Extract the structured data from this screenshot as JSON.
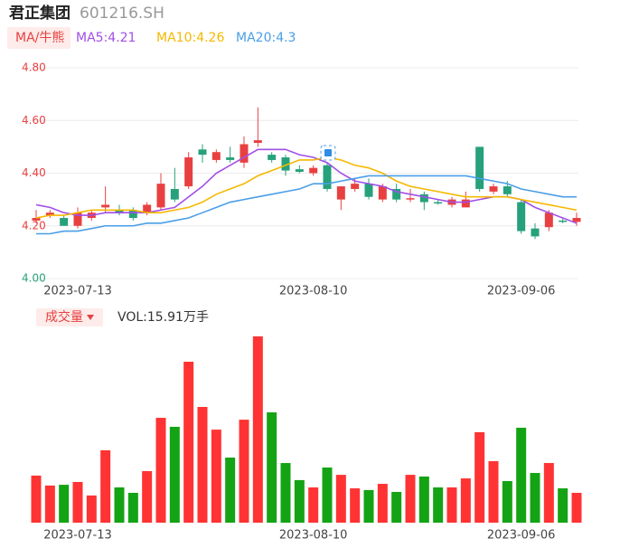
{
  "chart_data": [
    {
      "type": "candlestick",
      "title": "君正集团",
      "subtitle": "601216.SH",
      "indicator_button": "MA/牛熊",
      "categories": [
        null,
        null,
        null,
        "2023-07-13",
        null,
        null,
        null,
        null,
        null,
        null,
        null,
        null,
        null,
        null,
        null,
        null,
        null,
        null,
        null,
        null,
        "2023-08-10",
        null,
        null,
        null,
        null,
        null,
        null,
        null,
        null,
        null,
        null,
        null,
        null,
        null,
        null,
        "2023-09-06",
        null,
        null,
        null,
        null
      ],
      "open": [
        4.22,
        4.24,
        4.23,
        4.2,
        4.23,
        4.27,
        4.26,
        4.26,
        4.25,
        4.27,
        4.34,
        4.35,
        4.49,
        4.45,
        4.46,
        4.44,
        4.515,
        4.47,
        4.46,
        4.415,
        4.4,
        4.43,
        4.3,
        4.34,
        4.36,
        4.3,
        4.34,
        4.3,
        4.32,
        4.29,
        4.28,
        4.27,
        4.5,
        4.33,
        4.35,
        4.29,
        4.19,
        4.195,
        4.22,
        4.215
      ],
      "high": [
        4.26,
        4.26,
        4.24,
        4.27,
        4.26,
        4.35,
        4.28,
        4.27,
        4.29,
        4.4,
        4.42,
        4.48,
        4.51,
        4.49,
        4.5,
        4.54,
        4.65,
        4.48,
        4.47,
        4.43,
        4.43,
        4.44,
        4.35,
        4.38,
        4.38,
        4.36,
        4.36,
        4.34,
        4.33,
        4.3,
        4.31,
        4.33,
        4.5,
        4.36,
        4.37,
        4.3,
        4.21,
        4.26,
        4.23,
        4.25
      ],
      "low": [
        4.21,
        4.23,
        4.2,
        4.19,
        4.22,
        4.25,
        4.24,
        4.22,
        4.24,
        4.26,
        4.29,
        4.34,
        4.44,
        4.44,
        4.44,
        4.42,
        4.5,
        4.44,
        4.39,
        4.4,
        4.39,
        4.33,
        4.26,
        4.33,
        4.3,
        4.29,
        4.29,
        4.29,
        4.26,
        4.28,
        4.27,
        4.27,
        4.33,
        4.32,
        4.31,
        4.17,
        4.15,
        4.18,
        4.21,
        4.2
      ],
      "close": [
        4.23,
        4.25,
        4.2,
        4.25,
        4.25,
        4.28,
        4.25,
        4.23,
        4.28,
        4.36,
        4.3,
        4.46,
        4.47,
        4.48,
        4.45,
        4.51,
        4.525,
        4.45,
        4.41,
        4.405,
        4.42,
        4.34,
        4.35,
        4.36,
        4.31,
        4.35,
        4.3,
        4.305,
        4.29,
        4.285,
        4.3,
        4.3,
        4.34,
        4.35,
        4.32,
        4.18,
        4.16,
        4.25,
        4.215,
        4.23
      ],
      "up_color": "#e84040",
      "down_color": "#26a17b",
      "series": [
        {
          "name": "MA5:4.21",
          "color": "#a24ee8",
          "values": [
            4.28,
            4.27,
            4.25,
            4.24,
            4.24,
            4.25,
            4.25,
            4.25,
            4.25,
            4.26,
            4.27,
            4.31,
            4.35,
            4.4,
            4.43,
            4.46,
            4.49,
            4.49,
            4.49,
            4.47,
            4.46,
            4.44,
            4.4,
            4.37,
            4.36,
            4.35,
            4.33,
            4.32,
            4.31,
            4.3,
            4.29,
            4.29,
            4.3,
            4.31,
            4.31,
            4.3,
            4.27,
            4.25,
            4.23,
            4.21
          ]
        },
        {
          "name": "MA10:4.26",
          "color": "#f5b800",
          "values": [
            4.23,
            4.24,
            4.24,
            4.25,
            4.26,
            4.26,
            4.26,
            4.26,
            4.25,
            4.25,
            4.26,
            4.27,
            4.29,
            4.32,
            4.34,
            4.36,
            4.39,
            4.41,
            4.43,
            4.45,
            4.45,
            4.46,
            4.45,
            4.43,
            4.42,
            4.4,
            4.37,
            4.35,
            4.34,
            4.33,
            4.32,
            4.31,
            4.31,
            4.31,
            4.31,
            4.3,
            4.29,
            4.28,
            4.27,
            4.26
          ]
        },
        {
          "name": "MA20:4.3",
          "color": "#4a9ee8",
          "values": [
            4.17,
            4.17,
            4.18,
            4.18,
            4.19,
            4.2,
            4.2,
            4.2,
            4.21,
            4.21,
            4.22,
            4.23,
            4.25,
            4.27,
            4.29,
            4.3,
            4.31,
            4.32,
            4.33,
            4.34,
            4.36,
            4.36,
            4.37,
            4.38,
            4.39,
            4.39,
            4.39,
            4.39,
            4.39,
            4.39,
            4.39,
            4.39,
            4.38,
            4.37,
            4.36,
            4.34,
            4.33,
            4.32,
            4.31,
            4.31
          ]
        }
      ],
      "ylim": [
        4.0,
        4.8
      ],
      "yticks": [
        {
          "value": 4.8,
          "label": "4.80"
        },
        {
          "value": 4.6,
          "label": "4.60"
        },
        {
          "value": 4.4,
          "label": "4.40"
        },
        {
          "value": 4.2,
          "label": "4.20"
        },
        {
          "value": 4.0,
          "label": "4.00"
        }
      ],
      "ytick_colors": [
        "#e84040",
        "#e84040",
        "#e84040",
        "#e84040",
        "#26a17b"
      ],
      "grid": true
    },
    {
      "type": "volume",
      "indicator_button": "成交量",
      "label": "VOL:15.91万手",
      "categories": [
        null,
        null,
        null,
        "2023-07-13",
        null,
        null,
        null,
        null,
        null,
        null,
        null,
        null,
        null,
        null,
        null,
        null,
        null,
        null,
        null,
        null,
        "2023-08-10",
        null,
        null,
        null,
        null,
        null,
        null,
        null,
        null,
        null,
        null,
        null,
        null,
        null,
        null,
        "2023-09-06",
        null,
        null,
        null,
        null
      ],
      "values": [
        25.1,
        19.8,
        20.2,
        21.7,
        14.5,
        38.6,
        18.8,
        15.9,
        27.5,
        55.9,
        51.1,
        85.8,
        61.7,
        49.6,
        34.7,
        54.9,
        99.3,
        58.8,
        31.8,
        22.7,
        18.8,
        29.4,
        25.5,
        18.3,
        17.4,
        20.7,
        16.4,
        25.5,
        24.6,
        18.8,
        18.8,
        23.6,
        48.2,
        32.8,
        22.2,
        50.6,
        26.5,
        31.8,
        18.3,
        15.91
      ],
      "colors": [
        "#ff3333",
        "#ff3333",
        "#14a314",
        "#ff3333",
        "#ff3333",
        "#ff3333",
        "#14a314",
        "#14a314",
        "#ff3333",
        "#ff3333",
        "#14a314",
        "#ff3333",
        "#ff3333",
        "#ff3333",
        "#14a314",
        "#ff3333",
        "#ff3333",
        "#14a314",
        "#14a314",
        "#14a314",
        "#ff3333",
        "#14a314",
        "#ff3333",
        "#ff3333",
        "#14a314",
        "#ff3333",
        "#14a314",
        "#ff3333",
        "#14a314",
        "#14a314",
        "#ff3333",
        "#ff3333",
        "#ff3333",
        "#ff3333",
        "#14a314",
        "#14a314",
        "#14a314",
        "#ff3333",
        "#14a314",
        "#ff3333"
      ]
    }
  ]
}
